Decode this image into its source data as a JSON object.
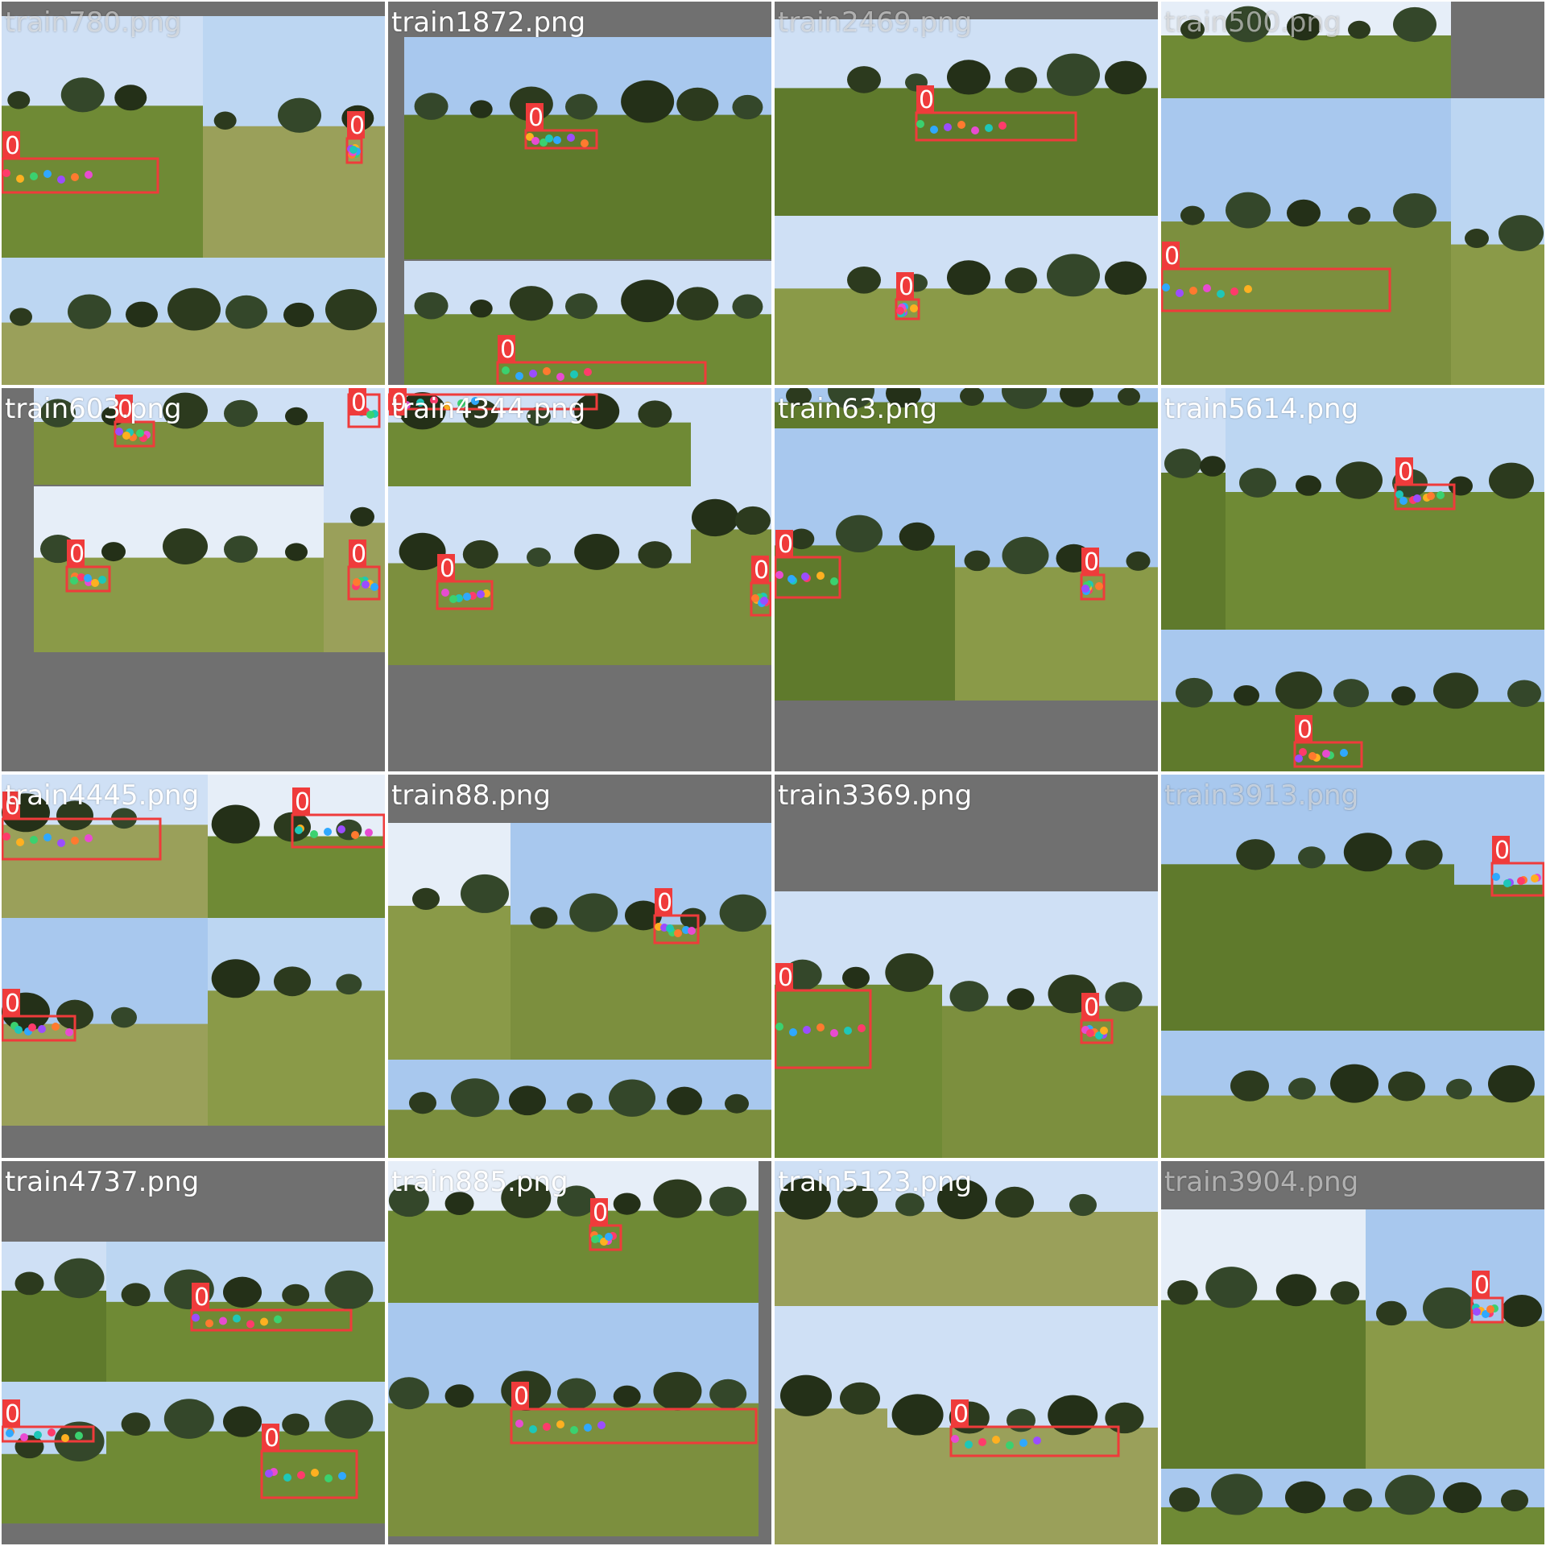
{
  "colors": {
    "background": "#ffffff",
    "tile_fill": "#707070",
    "box": "#ef3b3b",
    "label_bg": "#ef3b3b",
    "label_text": "#ffffff"
  },
  "label_class": "0",
  "tiles": [
    {
      "title": "train780.png",
      "faint": true,
      "num_boxes": 2
    },
    {
      "title": "train1872.png",
      "faint": false,
      "num_boxes": 2
    },
    {
      "title": "train2469.png",
      "faint": true,
      "num_boxes": 2
    },
    {
      "title": "train500.png",
      "faint": true,
      "num_boxes": 1
    },
    {
      "title": "train603.png",
      "faint": false,
      "num_boxes": 4
    },
    {
      "title": "train4344.png",
      "faint": false,
      "num_boxes": 3
    },
    {
      "title": "train63.png",
      "faint": false,
      "num_boxes": 2
    },
    {
      "title": "train5614.png",
      "faint": false,
      "num_boxes": 2
    },
    {
      "title": "train4445.png",
      "faint": false,
      "num_boxes": 3
    },
    {
      "title": "train88.png",
      "faint": false,
      "num_boxes": 1
    },
    {
      "title": "train3369.png",
      "faint": false,
      "num_boxes": 2
    },
    {
      "title": "train3913.png",
      "faint": true,
      "num_boxes": 1
    },
    {
      "title": "train4737.png",
      "faint": false,
      "num_boxes": 3
    },
    {
      "title": "train885.png",
      "faint": false,
      "num_boxes": 2
    },
    {
      "title": "train5123.png",
      "faint": false,
      "num_boxes": 1
    },
    {
      "title": "train3904.png",
      "faint": true,
      "num_boxes": 1
    }
  ]
}
